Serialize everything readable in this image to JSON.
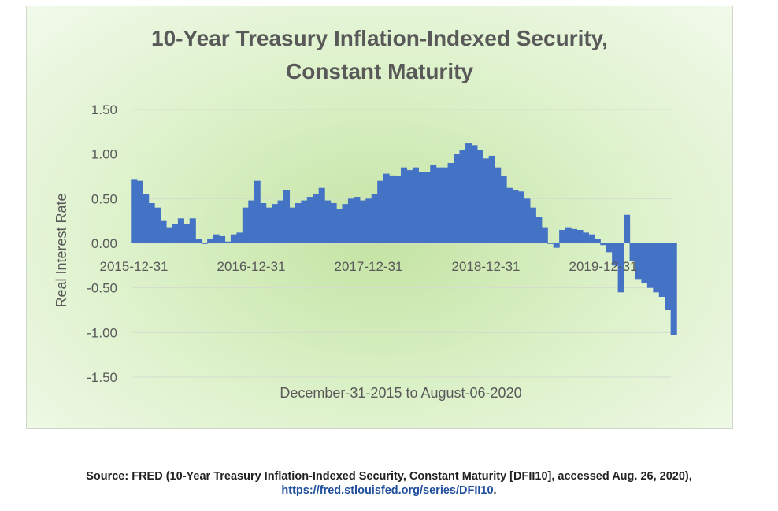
{
  "chart_data": {
    "type": "bar",
    "title_lines": [
      "10-Year Treasury Inflation-Indexed Security,",
      "Constant Maturity"
    ],
    "xlabel": "December-31-2015 to August-06-2020",
    "ylabel": "Real Interest Rate",
    "ylim": [
      -1.5,
      1.5
    ],
    "yticks": [
      "1.50",
      "1.00",
      "0.50",
      "0.00",
      "-0.50",
      "-1.00",
      "-1.50"
    ],
    "ytick_values": [
      1.5,
      1.0,
      0.5,
      0.0,
      -0.5,
      -1.0,
      -1.5
    ],
    "xticks": [
      "2015-12-31",
      "2016-12-31",
      "2017-12-31",
      "2018-12-31",
      "2019-12-31"
    ],
    "xtick_years": [
      0,
      1,
      2,
      3,
      4
    ],
    "x_span_years": 4.6,
    "gridlines": true,
    "bar_color": "#4472c4",
    "series": [
      {
        "name": "DFII10",
        "x_years": [
          0.0,
          0.05,
          0.1,
          0.15,
          0.2,
          0.25,
          0.3,
          0.35,
          0.4,
          0.45,
          0.5,
          0.55,
          0.6,
          0.65,
          0.7,
          0.75,
          0.8,
          0.85,
          0.9,
          0.95,
          1.0,
          1.05,
          1.1,
          1.15,
          1.2,
          1.25,
          1.3,
          1.35,
          1.4,
          1.45,
          1.5,
          1.55,
          1.6,
          1.65,
          1.7,
          1.75,
          1.8,
          1.85,
          1.9,
          1.95,
          2.0,
          2.05,
          2.1,
          2.15,
          2.2,
          2.25,
          2.3,
          2.35,
          2.4,
          2.45,
          2.5,
          2.55,
          2.6,
          2.65,
          2.7,
          2.75,
          2.8,
          2.85,
          2.9,
          2.95,
          3.0,
          3.05,
          3.1,
          3.15,
          3.2,
          3.25,
          3.3,
          3.35,
          3.4,
          3.45,
          3.5,
          3.55,
          3.6,
          3.65,
          3.7,
          3.75,
          3.8,
          3.85,
          3.9,
          3.95,
          4.0,
          4.05,
          4.1,
          4.15,
          4.2,
          4.25,
          4.3,
          4.35,
          4.4,
          4.45,
          4.5,
          4.55,
          4.6
        ],
        "values": [
          0.72,
          0.7,
          0.55,
          0.45,
          0.4,
          0.25,
          0.18,
          0.22,
          0.28,
          0.22,
          0.28,
          0.05,
          0.0,
          0.05,
          0.1,
          0.08,
          0.02,
          0.1,
          0.12,
          0.4,
          0.48,
          0.7,
          0.45,
          0.4,
          0.44,
          0.48,
          0.6,
          0.4,
          0.45,
          0.48,
          0.52,
          0.55,
          0.62,
          0.48,
          0.45,
          0.38,
          0.44,
          0.5,
          0.52,
          0.48,
          0.5,
          0.55,
          0.7,
          0.78,
          0.76,
          0.75,
          0.85,
          0.82,
          0.85,
          0.8,
          0.8,
          0.88,
          0.85,
          0.85,
          0.9,
          1.0,
          1.05,
          1.12,
          1.1,
          1.05,
          0.95,
          0.98,
          0.85,
          0.75,
          0.62,
          0.6,
          0.58,
          0.5,
          0.4,
          0.3,
          0.18,
          0.0,
          -0.05,
          0.15,
          0.18,
          0.16,
          0.15,
          0.12,
          0.1,
          0.05,
          -0.02,
          -0.1,
          -0.25,
          -0.55,
          0.32,
          -0.2,
          -0.4,
          -0.45,
          -0.5,
          -0.55,
          -0.6,
          -0.75,
          -1.03
        ]
      }
    ]
  },
  "source": {
    "prefix": "Source: FRED (10-Year Treasury Inflation-Indexed Security, Constant Maturity [DFII10], accessed Aug. 26, 2020),",
    "link": "https://fred.stlouisfed.org/series/DFII10",
    "suffix": "."
  }
}
